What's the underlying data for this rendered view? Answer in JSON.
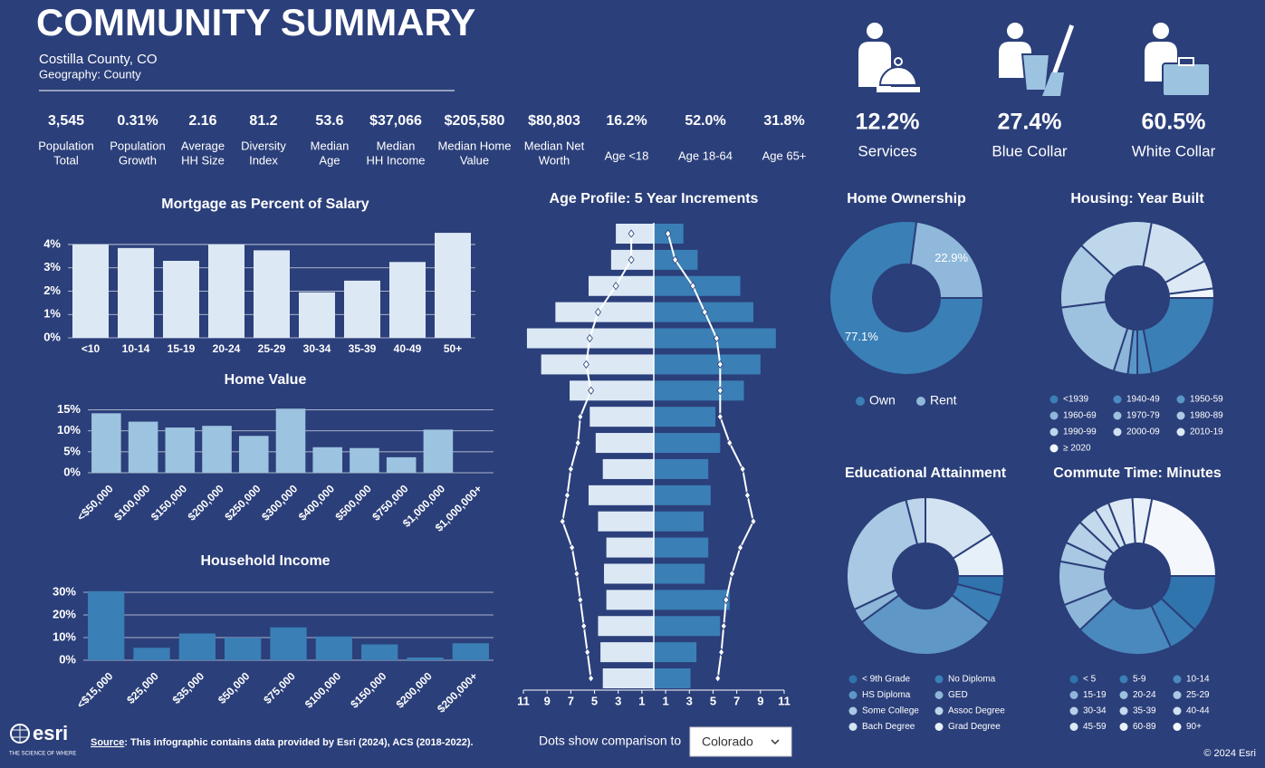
{
  "header": {
    "title": "COMMUNITY SUMMARY",
    "location": "Costilla County, CO",
    "geography": "Geography: County"
  },
  "stats": [
    {
      "value": "3,545",
      "label": [
        "Population",
        "Total"
      ]
    },
    {
      "value": "0.31%",
      "label": [
        "Population",
        "Growth"
      ]
    },
    {
      "value": "2.16",
      "label": [
        "Average",
        "HH Size"
      ]
    },
    {
      "value": "81.2",
      "label": [
        "Diversity",
        "Index"
      ]
    },
    {
      "value": "53.6",
      "label": [
        "Median",
        "Age"
      ]
    },
    {
      "value": "$37,066",
      "label": [
        "Median",
        "HH Income"
      ]
    },
    {
      "value": "$205,580",
      "label": [
        "Median Home",
        "Value"
      ]
    },
    {
      "value": "$80,803",
      "label": [
        "Median Net",
        "Worth"
      ]
    },
    {
      "value": "16.2%",
      "label": [
        "Age <18"
      ]
    },
    {
      "value": "52.0%",
      "label": [
        "Age 18-64"
      ]
    },
    {
      "value": "31.8%",
      "label": [
        "Age 65+"
      ]
    }
  ],
  "occupations": [
    {
      "value": "12.2%",
      "label": "Services"
    },
    {
      "value": "27.4%",
      "label": "Blue Collar"
    },
    {
      "value": "60.5%",
      "label": "White Collar"
    }
  ],
  "chart_data": [
    {
      "type": "bar",
      "title": "Mortgage as Percent of Salary",
      "color": "#dce9f5",
      "categories": [
        "<10",
        "10-14",
        "15-19",
        "20-24",
        "25-29",
        "30-34",
        "35-39",
        "40-49",
        "50+"
      ],
      "values": [
        4.0,
        3.85,
        3.3,
        4.0,
        3.75,
        1.95,
        2.45,
        3.25,
        4.5
      ],
      "ylim": [
        0,
        4.6
      ],
      "yticks": [
        {
          "value": 0,
          "label": "0%"
        },
        {
          "value": 1,
          "label": "1%"
        },
        {
          "value": 2,
          "label": "2%"
        },
        {
          "value": 3,
          "label": "3%"
        },
        {
          "value": 4,
          "label": "4%"
        }
      ],
      "grid": true
    },
    {
      "type": "bar",
      "title": "Home Value",
      "color": "#9cc3e0",
      "categories": [
        "<$50,000",
        "$100,000",
        "$150,000",
        "$200,000",
        "$250,000",
        "$300,000",
        "$400,000",
        "$500,000",
        "$750,000",
        "$1,000,000",
        "$1,000,000+"
      ],
      "values": [
        14.2,
        12.2,
        10.8,
        11.2,
        8.8,
        15.3,
        6.1,
        5.9,
        3.7,
        10.3,
        null
      ],
      "ylim": [
        0,
        16
      ],
      "yticks": [
        {
          "value": 0,
          "label": "0%"
        },
        {
          "value": 5,
          "label": "5%"
        },
        {
          "value": 10,
          "label": "10%"
        },
        {
          "value": 15,
          "label": "15%"
        }
      ],
      "grid": true
    },
    {
      "type": "bar",
      "title": "Household Income",
      "color": "#3a7fb5",
      "categories": [
        "<$15,000",
        "$25,000",
        "$35,000",
        "$50,000",
        "$75,000",
        "$100,000",
        "$150,000",
        "$200,000",
        "$200,000+"
      ],
      "values": [
        30.5,
        5.5,
        11.8,
        10.0,
        14.5,
        10.5,
        7.0,
        1.2,
        7.5
      ],
      "ylim": [
        0,
        32
      ],
      "yticks": [
        {
          "value": 0,
          "label": "0%"
        },
        {
          "value": 10,
          "label": "10%"
        },
        {
          "value": 20,
          "label": "20%"
        },
        {
          "value": 30,
          "label": "30%"
        }
      ],
      "grid": true
    },
    {
      "type": "pyramid",
      "title": "Age Profile: 5 Year Increments",
      "series": [
        {
          "color": "#dce9f5",
          "values": [
            3.2,
            3.6,
            5.5,
            8.3,
            10.7,
            9.5,
            7.1,
            5.4,
            4.9,
            4.3,
            5.5,
            4.7,
            4.0,
            4.2,
            4.0,
            4.7,
            4.5,
            4.3
          ]
        },
        {
          "color": "#3a7fb5",
          "values": [
            2.5,
            3.7,
            7.3,
            8.4,
            10.3,
            9.0,
            7.6,
            5.2,
            5.6,
            4.6,
            4.8,
            4.2,
            4.6,
            4.3,
            6.4,
            5.6,
            3.6,
            3.1
          ]
        }
      ],
      "comparison": [
        {
          "color": "#ffffff",
          "values": [
            1.9,
            1.9,
            3.2,
            4.7,
            5.4,
            5.7,
            5.3,
            6.2,
            6.4,
            7.0,
            7.3,
            7.7,
            6.9,
            6.5,
            6.2,
            5.9,
            5.6,
            5.3
          ]
        },
        {
          "color": "#ffffff",
          "values": [
            1.2,
            1.8,
            3.3,
            4.3,
            5.3,
            5.6,
            5.6,
            5.6,
            6.4,
            7.5,
            7.9,
            8.4,
            7.3,
            6.6,
            6.1,
            5.9,
            5.7,
            5.4
          ]
        }
      ],
      "xlim": [
        0,
        11
      ],
      "xticks_left": [
        11,
        9,
        7,
        5,
        3,
        1
      ],
      "xticks_right": [
        1,
        3,
        5,
        7,
        9,
        11
      ],
      "comparison_label": "Dots show comparison to",
      "comparison_selection": "Colorado"
    },
    {
      "type": "donut",
      "title": "Home Ownership",
      "categories": [
        "Own",
        "Rent"
      ],
      "values": [
        77.1,
        22.9
      ],
      "value_labels": [
        "77.1%",
        "22.9%"
      ],
      "colors": [
        "#3a7fb5",
        "#8fb8da"
      ]
    },
    {
      "type": "donut",
      "title": "Housing: Year Built",
      "categories": [
        "<1939",
        "1940-49",
        "1950-59",
        "1960-69",
        "1970-79",
        "1980-89",
        "1990-99",
        "2000-09",
        "2010-19",
        "≥ 2020"
      ],
      "values": [
        22,
        3,
        2,
        3,
        18,
        14,
        16,
        14,
        6,
        2
      ],
      "colors": [
        "#3a7fb5",
        "#4b8cc0",
        "#5a96c6",
        "#8db6d9",
        "#9dc2e0",
        "#abcae4",
        "#bfd7eb",
        "#cfe1f0",
        "#dde9f5",
        "#f0f6fc"
      ]
    },
    {
      "type": "donut",
      "title": "Educational Attainment",
      "categories": [
        "< 9th Grade",
        "No Diploma",
        "HS Diploma",
        "GED",
        "Some College",
        "Assoc Degree",
        "Bach Degree",
        "Grad Degree"
      ],
      "values": [
        4,
        6,
        30,
        3,
        28,
        4,
        16,
        9
      ],
      "colors": [
        "#2f74ad",
        "#3a7fb5",
        "#5f97c6",
        "#8db6d9",
        "#a9c8e3",
        "#bcd5ea",
        "#d3e3f1",
        "#e6f0f8"
      ]
    },
    {
      "type": "donut",
      "title": "Commute Time: Minutes",
      "categories": [
        "< 5",
        "5-9",
        "10-14",
        "15-19",
        "20-24",
        "25-29",
        "30-34",
        "35-39",
        "40-44",
        "45-59",
        "60-89",
        "90+"
      ],
      "values": [
        12,
        6,
        20,
        6,
        9,
        4,
        5,
        4,
        3,
        5,
        4,
        22
      ],
      "colors": [
        "#2f74ad",
        "#3a7fb5",
        "#4a89bd",
        "#8db6d9",
        "#9cc0de",
        "#a9c8e3",
        "#b6d0e8",
        "#c3d9ec",
        "#d0e1f1",
        "#dce9f5",
        "#e8f1f9",
        "#f4f8fc"
      ]
    }
  ],
  "footer": {
    "logo": "esri",
    "tagline": "THE SCIENCE OF WHERE",
    "source_label": "Source",
    "source_text": ": This infographic contains data provided by Esri (2024), ACS (2018-2022).",
    "copyright": "© 2024 Esri"
  }
}
